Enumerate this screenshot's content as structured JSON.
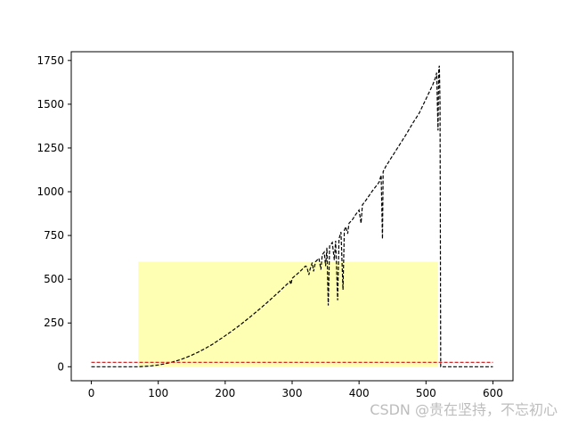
{
  "chart_data": {
    "type": "line",
    "xlim": [
      -30,
      630
    ],
    "ylim": [
      -80,
      1800
    ],
    "xticks": [
      0,
      100,
      200,
      300,
      400,
      500,
      600
    ],
    "yticks": [
      0,
      250,
      500,
      750,
      1000,
      1250,
      1500,
      1750
    ],
    "grid": false,
    "colors": {
      "main": "#000000",
      "baseline": "#d62728",
      "span": "#ffffb3"
    },
    "span": {
      "x0": 70,
      "x1": 518,
      "y0": 0,
      "y1": 600
    },
    "baseline": {
      "y": 25,
      "x0": 0,
      "x1": 600
    },
    "series": [
      {
        "style": "dashed",
        "points": [
          [
            0,
            0
          ],
          [
            50,
            0
          ],
          [
            70,
            0
          ],
          [
            80,
            2
          ],
          [
            90,
            5
          ],
          [
            100,
            10
          ],
          [
            110,
            17
          ],
          [
            120,
            26
          ],
          [
            130,
            37
          ],
          [
            140,
            50
          ],
          [
            150,
            66
          ],
          [
            160,
            84
          ],
          [
            170,
            104
          ],
          [
            180,
            126
          ],
          [
            190,
            151
          ],
          [
            200,
            177
          ],
          [
            210,
            204
          ],
          [
            220,
            232
          ],
          [
            230,
            262
          ],
          [
            240,
            293
          ],
          [
            250,
            325
          ],
          [
            260,
            358
          ],
          [
            270,
            392
          ],
          [
            280,
            427
          ],
          [
            290,
            463
          ],
          [
            297,
            488
          ],
          [
            298,
            470
          ],
          [
            299,
            485
          ],
          [
            300,
            505
          ],
          [
            310,
            538
          ],
          [
            320,
            575
          ],
          [
            322,
            570
          ],
          [
            325,
            525
          ],
          [
            327,
            560
          ],
          [
            330,
            595
          ],
          [
            332,
            545
          ],
          [
            335,
            600
          ],
          [
            340,
            620
          ],
          [
            343,
            555
          ],
          [
            345,
            640
          ],
          [
            348,
            655
          ],
          [
            350,
            575
          ],
          [
            352,
            680
          ],
          [
            354,
            350
          ],
          [
            356,
            690
          ],
          [
            360,
            710
          ],
          [
            363,
            610
          ],
          [
            365,
            720
          ],
          [
            368,
            380
          ],
          [
            370,
            730
          ],
          [
            373,
            770
          ],
          [
            376,
            440
          ],
          [
            378,
            780
          ],
          [
            380,
            800
          ],
          [
            383,
            760
          ],
          [
            385,
            820
          ],
          [
            390,
            840
          ],
          [
            395,
            870
          ],
          [
            400,
            895
          ],
          [
            403,
            820
          ],
          [
            405,
            925
          ],
          [
            410,
            950
          ],
          [
            420,
            1005
          ],
          [
            430,
            1055
          ],
          [
            433,
            1095
          ],
          [
            435,
            730
          ],
          [
            436,
            1115
          ],
          [
            440,
            1145
          ],
          [
            450,
            1205
          ],
          [
            460,
            1265
          ],
          [
            470,
            1325
          ],
          [
            480,
            1390
          ],
          [
            490,
            1450
          ],
          [
            500,
            1530
          ],
          [
            510,
            1610
          ],
          [
            514,
            1650
          ],
          [
            516,
            1680
          ],
          [
            517,
            1500
          ],
          [
            518,
            1350
          ],
          [
            519,
            1700
          ],
          [
            520,
            1720
          ],
          [
            521,
            1500
          ],
          [
            522,
            0
          ],
          [
            540,
            0
          ],
          [
            600,
            0
          ]
        ]
      }
    ]
  },
  "watermark": "CSDN @贵在坚持，不忘初心"
}
